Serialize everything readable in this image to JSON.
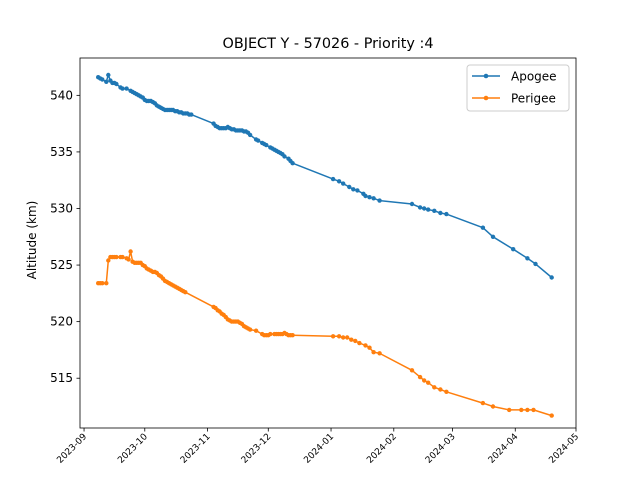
{
  "chart_data": {
    "type": "line",
    "title": "OBJECT Y - 57026 - Priority :4",
    "xlabel": "",
    "ylabel": "Altitude (km)",
    "xlim": [
      "2023-08-30",
      "2024-05-01"
    ],
    "ylim": [
      510.6,
      543.3
    ],
    "xticks": [
      "2023-09",
      "2023-10",
      "2023-11",
      "2023-12",
      "2024-01",
      "2024-02",
      "2024-03",
      "2024-04",
      "2024-05"
    ],
    "yticks": [
      515,
      520,
      525,
      530,
      535,
      540
    ],
    "legend": {
      "position": "top-right",
      "entries": [
        "Apogee",
        "Perigee"
      ]
    },
    "grid": false,
    "series": [
      {
        "name": "Apogee",
        "color": "#1f77b4",
        "points": [
          [
            "2023-09-08",
            541.6
          ],
          [
            "2023-09-09",
            541.5
          ],
          [
            "2023-09-10",
            541.4
          ],
          [
            "2023-09-12",
            541.2
          ],
          [
            "2023-09-13",
            541.8
          ],
          [
            "2023-09-14",
            541.3
          ],
          [
            "2023-09-15",
            541.1
          ],
          [
            "2023-09-16",
            541.1
          ],
          [
            "2023-09-17",
            541.0
          ],
          [
            "2023-09-19",
            540.7
          ],
          [
            "2023-09-20",
            540.6
          ],
          [
            "2023-09-22",
            540.6
          ],
          [
            "2023-09-24",
            540.4
          ],
          [
            "2023-09-25",
            540.3
          ],
          [
            "2023-09-26",
            540.2
          ],
          [
            "2023-09-27",
            540.1
          ],
          [
            "2023-09-28",
            540.0
          ],
          [
            "2023-09-29",
            539.9
          ],
          [
            "2023-09-30",
            539.8
          ],
          [
            "2023-10-01",
            539.6
          ],
          [
            "2023-10-02",
            539.5
          ],
          [
            "2023-10-03",
            539.5
          ],
          [
            "2023-10-04",
            539.5
          ],
          [
            "2023-10-05",
            539.4
          ],
          [
            "2023-10-06",
            539.3
          ],
          [
            "2023-10-07",
            539.1
          ],
          [
            "2023-10-08",
            539.0
          ],
          [
            "2023-10-09",
            538.9
          ],
          [
            "2023-10-10",
            538.8
          ],
          [
            "2023-10-11",
            538.7
          ],
          [
            "2023-10-12",
            538.7
          ],
          [
            "2023-10-13",
            538.7
          ],
          [
            "2023-10-14",
            538.7
          ],
          [
            "2023-10-15",
            538.7
          ],
          [
            "2023-10-16",
            538.6
          ],
          [
            "2023-10-17",
            538.6
          ],
          [
            "2023-10-18",
            538.5
          ],
          [
            "2023-10-19",
            538.5
          ],
          [
            "2023-10-20",
            538.4
          ],
          [
            "2023-10-21",
            538.4
          ],
          [
            "2023-10-22",
            538.4
          ],
          [
            "2023-10-23",
            538.3
          ],
          [
            "2023-10-24",
            538.3
          ],
          [
            "2023-11-04",
            537.5
          ],
          [
            "2023-11-05",
            537.3
          ],
          [
            "2023-11-06",
            537.2
          ],
          [
            "2023-11-07",
            537.1
          ],
          [
            "2023-11-08",
            537.1
          ],
          [
            "2023-11-09",
            537.1
          ],
          [
            "2023-11-10",
            537.1
          ],
          [
            "2023-11-11",
            537.2
          ],
          [
            "2023-11-12",
            537.1
          ],
          [
            "2023-11-13",
            537.0
          ],
          [
            "2023-11-14",
            537.0
          ],
          [
            "2023-11-15",
            536.9
          ],
          [
            "2023-11-16",
            536.9
          ],
          [
            "2023-11-17",
            536.9
          ],
          [
            "2023-11-18",
            536.9
          ],
          [
            "2023-11-19",
            536.8
          ],
          [
            "2023-11-20",
            536.8
          ],
          [
            "2023-11-21",
            536.7
          ],
          [
            "2023-11-22",
            536.5
          ],
          [
            "2023-11-25",
            536.1
          ],
          [
            "2023-11-26",
            536.0
          ],
          [
            "2023-11-28",
            535.8
          ],
          [
            "2023-11-29",
            535.7
          ],
          [
            "2023-11-30",
            535.6
          ],
          [
            "2023-12-02",
            535.4
          ],
          [
            "2023-12-03",
            535.3
          ],
          [
            "2023-12-04",
            535.2
          ],
          [
            "2023-12-05",
            535.1
          ],
          [
            "2023-12-06",
            535.0
          ],
          [
            "2023-12-07",
            534.9
          ],
          [
            "2023-12-08",
            534.8
          ],
          [
            "2023-12-09",
            534.6
          ],
          [
            "2023-12-11",
            534.4
          ],
          [
            "2023-12-12",
            534.2
          ],
          [
            "2023-12-13",
            534.0
          ],
          [
            "2024-01-02",
            532.6
          ],
          [
            "2024-01-05",
            532.4
          ],
          [
            "2024-01-07",
            532.2
          ],
          [
            "2024-01-10",
            531.9
          ],
          [
            "2024-01-12",
            531.7
          ],
          [
            "2024-01-14",
            531.6
          ],
          [
            "2024-01-17",
            531.3
          ],
          [
            "2024-01-18",
            531.1
          ],
          [
            "2024-01-20",
            531.0
          ],
          [
            "2024-01-22",
            530.9
          ],
          [
            "2024-01-25",
            530.7
          ],
          [
            "2024-02-10",
            530.4
          ],
          [
            "2024-02-14",
            530.1
          ],
          [
            "2024-02-16",
            530.0
          ],
          [
            "2024-02-18",
            529.9
          ],
          [
            "2024-02-21",
            529.8
          ],
          [
            "2024-02-24",
            529.6
          ],
          [
            "2024-02-27",
            529.5
          ],
          [
            "2024-03-16",
            528.3
          ],
          [
            "2024-03-21",
            527.5
          ],
          [
            "2024-03-31",
            526.4
          ],
          [
            "2024-04-07",
            525.6
          ],
          [
            "2024-04-11",
            525.1
          ],
          [
            "2024-04-19",
            523.9
          ]
        ]
      },
      {
        "name": "Perigee",
        "color": "#ff7f0e",
        "points": [
          [
            "2023-09-08",
            523.4
          ],
          [
            "2023-09-09",
            523.4
          ],
          [
            "2023-09-10",
            523.4
          ],
          [
            "2023-09-12",
            523.4
          ],
          [
            "2023-09-13",
            525.4
          ],
          [
            "2023-09-14",
            525.7
          ],
          [
            "2023-09-15",
            525.7
          ],
          [
            "2023-09-16",
            525.7
          ],
          [
            "2023-09-17",
            525.7
          ],
          [
            "2023-09-19",
            525.7
          ],
          [
            "2023-09-20",
            525.7
          ],
          [
            "2023-09-22",
            525.6
          ],
          [
            "2023-09-23",
            525.5
          ],
          [
            "2023-09-24",
            526.2
          ],
          [
            "2023-09-25",
            525.3
          ],
          [
            "2023-09-26",
            525.2
          ],
          [
            "2023-09-27",
            525.2
          ],
          [
            "2023-09-28",
            525.2
          ],
          [
            "2023-09-29",
            525.2
          ],
          [
            "2023-09-30",
            525.0
          ],
          [
            "2023-10-01",
            524.9
          ],
          [
            "2023-10-02",
            524.7
          ],
          [
            "2023-10-03",
            524.6
          ],
          [
            "2023-10-04",
            524.5
          ],
          [
            "2023-10-05",
            524.4
          ],
          [
            "2023-10-06",
            524.4
          ],
          [
            "2023-10-07",
            524.3
          ],
          [
            "2023-10-08",
            524.1
          ],
          [
            "2023-10-09",
            524.0
          ],
          [
            "2023-10-10",
            523.8
          ],
          [
            "2023-10-11",
            523.6
          ],
          [
            "2023-10-12",
            523.5
          ],
          [
            "2023-10-13",
            523.4
          ],
          [
            "2023-10-14",
            523.3
          ],
          [
            "2023-10-15",
            523.2
          ],
          [
            "2023-10-16",
            523.1
          ],
          [
            "2023-10-17",
            523.0
          ],
          [
            "2023-10-18",
            522.9
          ],
          [
            "2023-10-19",
            522.8
          ],
          [
            "2023-10-20",
            522.7
          ],
          [
            "2023-10-21",
            522.6
          ],
          [
            "2023-11-04",
            521.3
          ],
          [
            "2023-11-05",
            521.2
          ],
          [
            "2023-11-06",
            521.0
          ],
          [
            "2023-11-07",
            520.9
          ],
          [
            "2023-11-08",
            520.7
          ],
          [
            "2023-11-09",
            520.6
          ],
          [
            "2023-11-10",
            520.4
          ],
          [
            "2023-11-11",
            520.2
          ],
          [
            "2023-11-12",
            520.1
          ],
          [
            "2023-11-13",
            520.0
          ],
          [
            "2023-11-14",
            520.0
          ],
          [
            "2023-11-15",
            520.0
          ],
          [
            "2023-11-16",
            520.0
          ],
          [
            "2023-11-17",
            519.9
          ],
          [
            "2023-11-18",
            519.8
          ],
          [
            "2023-11-19",
            519.6
          ],
          [
            "2023-11-20",
            519.5
          ],
          [
            "2023-11-21",
            519.4
          ],
          [
            "2023-11-22",
            519.3
          ],
          [
            "2023-11-25",
            519.2
          ],
          [
            "2023-11-28",
            518.9
          ],
          [
            "2023-11-29",
            518.8
          ],
          [
            "2023-11-30",
            518.8
          ],
          [
            "2023-12-01",
            518.8
          ],
          [
            "2023-12-02",
            518.9
          ],
          [
            "2023-12-04",
            518.9
          ],
          [
            "2023-12-05",
            518.9
          ],
          [
            "2023-12-06",
            518.9
          ],
          [
            "2023-12-07",
            518.9
          ],
          [
            "2023-12-08",
            518.9
          ],
          [
            "2023-12-09",
            519.0
          ],
          [
            "2023-12-10",
            518.9
          ],
          [
            "2023-12-11",
            518.8
          ],
          [
            "2023-12-12",
            518.8
          ],
          [
            "2023-12-13",
            518.8
          ],
          [
            "2024-01-02",
            518.7
          ],
          [
            "2024-01-05",
            518.7
          ],
          [
            "2024-01-07",
            518.6
          ],
          [
            "2024-01-09",
            518.6
          ],
          [
            "2024-01-11",
            518.4
          ],
          [
            "2024-01-13",
            518.3
          ],
          [
            "2024-01-15",
            518.1
          ],
          [
            "2024-01-18",
            517.9
          ],
          [
            "2024-01-20",
            517.7
          ],
          [
            "2024-01-22",
            517.3
          ],
          [
            "2024-01-25",
            517.2
          ],
          [
            "2024-02-10",
            515.7
          ],
          [
            "2024-02-14",
            515.1
          ],
          [
            "2024-02-16",
            514.8
          ],
          [
            "2024-02-18",
            514.6
          ],
          [
            "2024-02-21",
            514.2
          ],
          [
            "2024-02-24",
            514.0
          ],
          [
            "2024-02-27",
            513.8
          ],
          [
            "2024-03-16",
            512.8
          ],
          [
            "2024-03-21",
            512.5
          ],
          [
            "2024-03-29",
            512.2
          ],
          [
            "2024-04-04",
            512.2
          ],
          [
            "2024-04-07",
            512.2
          ],
          [
            "2024-04-10",
            512.2
          ],
          [
            "2024-04-19",
            511.7
          ]
        ]
      }
    ]
  }
}
